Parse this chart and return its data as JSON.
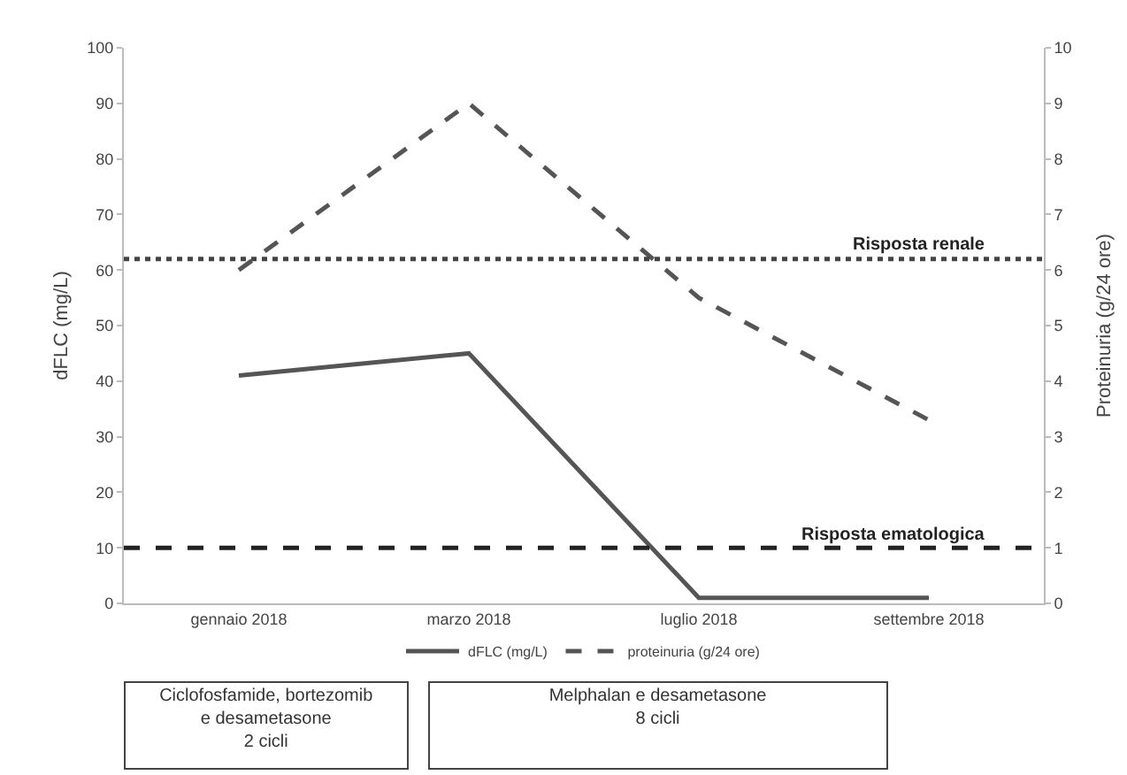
{
  "chart_data": {
    "type": "line",
    "categories": [
      "gennaio 2018",
      "marzo 2018",
      "luglio 2018",
      "settembre 2018"
    ],
    "ylabel": "dFLC (mg/L)",
    "y2label": "Proteinuria (g/24 ore)",
    "ylim": [
      0,
      100
    ],
    "yticks": [
      0,
      10,
      20,
      30,
      40,
      50,
      60,
      70,
      80,
      90,
      100
    ],
    "y2lim": [
      0,
      10
    ],
    "y2ticks": [
      0,
      1,
      2,
      3,
      4,
      5,
      6,
      7,
      8,
      9,
      10
    ],
    "series": [
      {
        "name": "dFLC (mg/L)",
        "color": "#555555",
        "line_style": "solid",
        "values": [
          41,
          45,
          1,
          1
        ]
      },
      {
        "name": "proteinuria (g/24 ore)",
        "color": "#555555",
        "line_style": "dashed",
        "axis": "y2",
        "values": [
          6.0,
          9.0,
          5.5,
          3.3
        ]
      }
    ],
    "ref_lines": [
      {
        "axis": "y",
        "value": 62,
        "label": "Risposta renale",
        "color": "#444444",
        "line_style": "dotted"
      },
      {
        "axis": "y",
        "value": 10,
        "label": "Risposta ematologica",
        "color": "#222222",
        "line_style": "dashed"
      }
    ],
    "annotations": [
      "Ciclofosfamide, bortezomib\ne desametasone\n2 cicli",
      "Melphalan e desametasone\n8 cicli"
    ],
    "grid": false,
    "legend": "bottom",
    "marker": "none"
  }
}
